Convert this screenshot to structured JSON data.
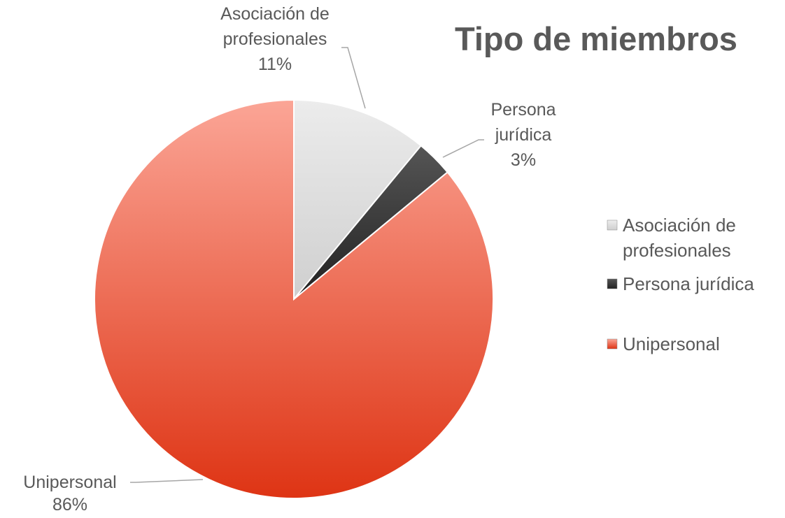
{
  "chart_data": {
    "type": "pie",
    "title": "Tipo de miembros",
    "categories": [
      "Asociación de profesionales",
      "Persona jurídica",
      "Unipersonal"
    ],
    "values": [
      11,
      3,
      86
    ],
    "value_labels": [
      "11%",
      "3%",
      "86%"
    ],
    "colors": [
      "#d9d9d9",
      "#3a3a3a",
      "#e8503a"
    ],
    "legend": "right"
  }
}
